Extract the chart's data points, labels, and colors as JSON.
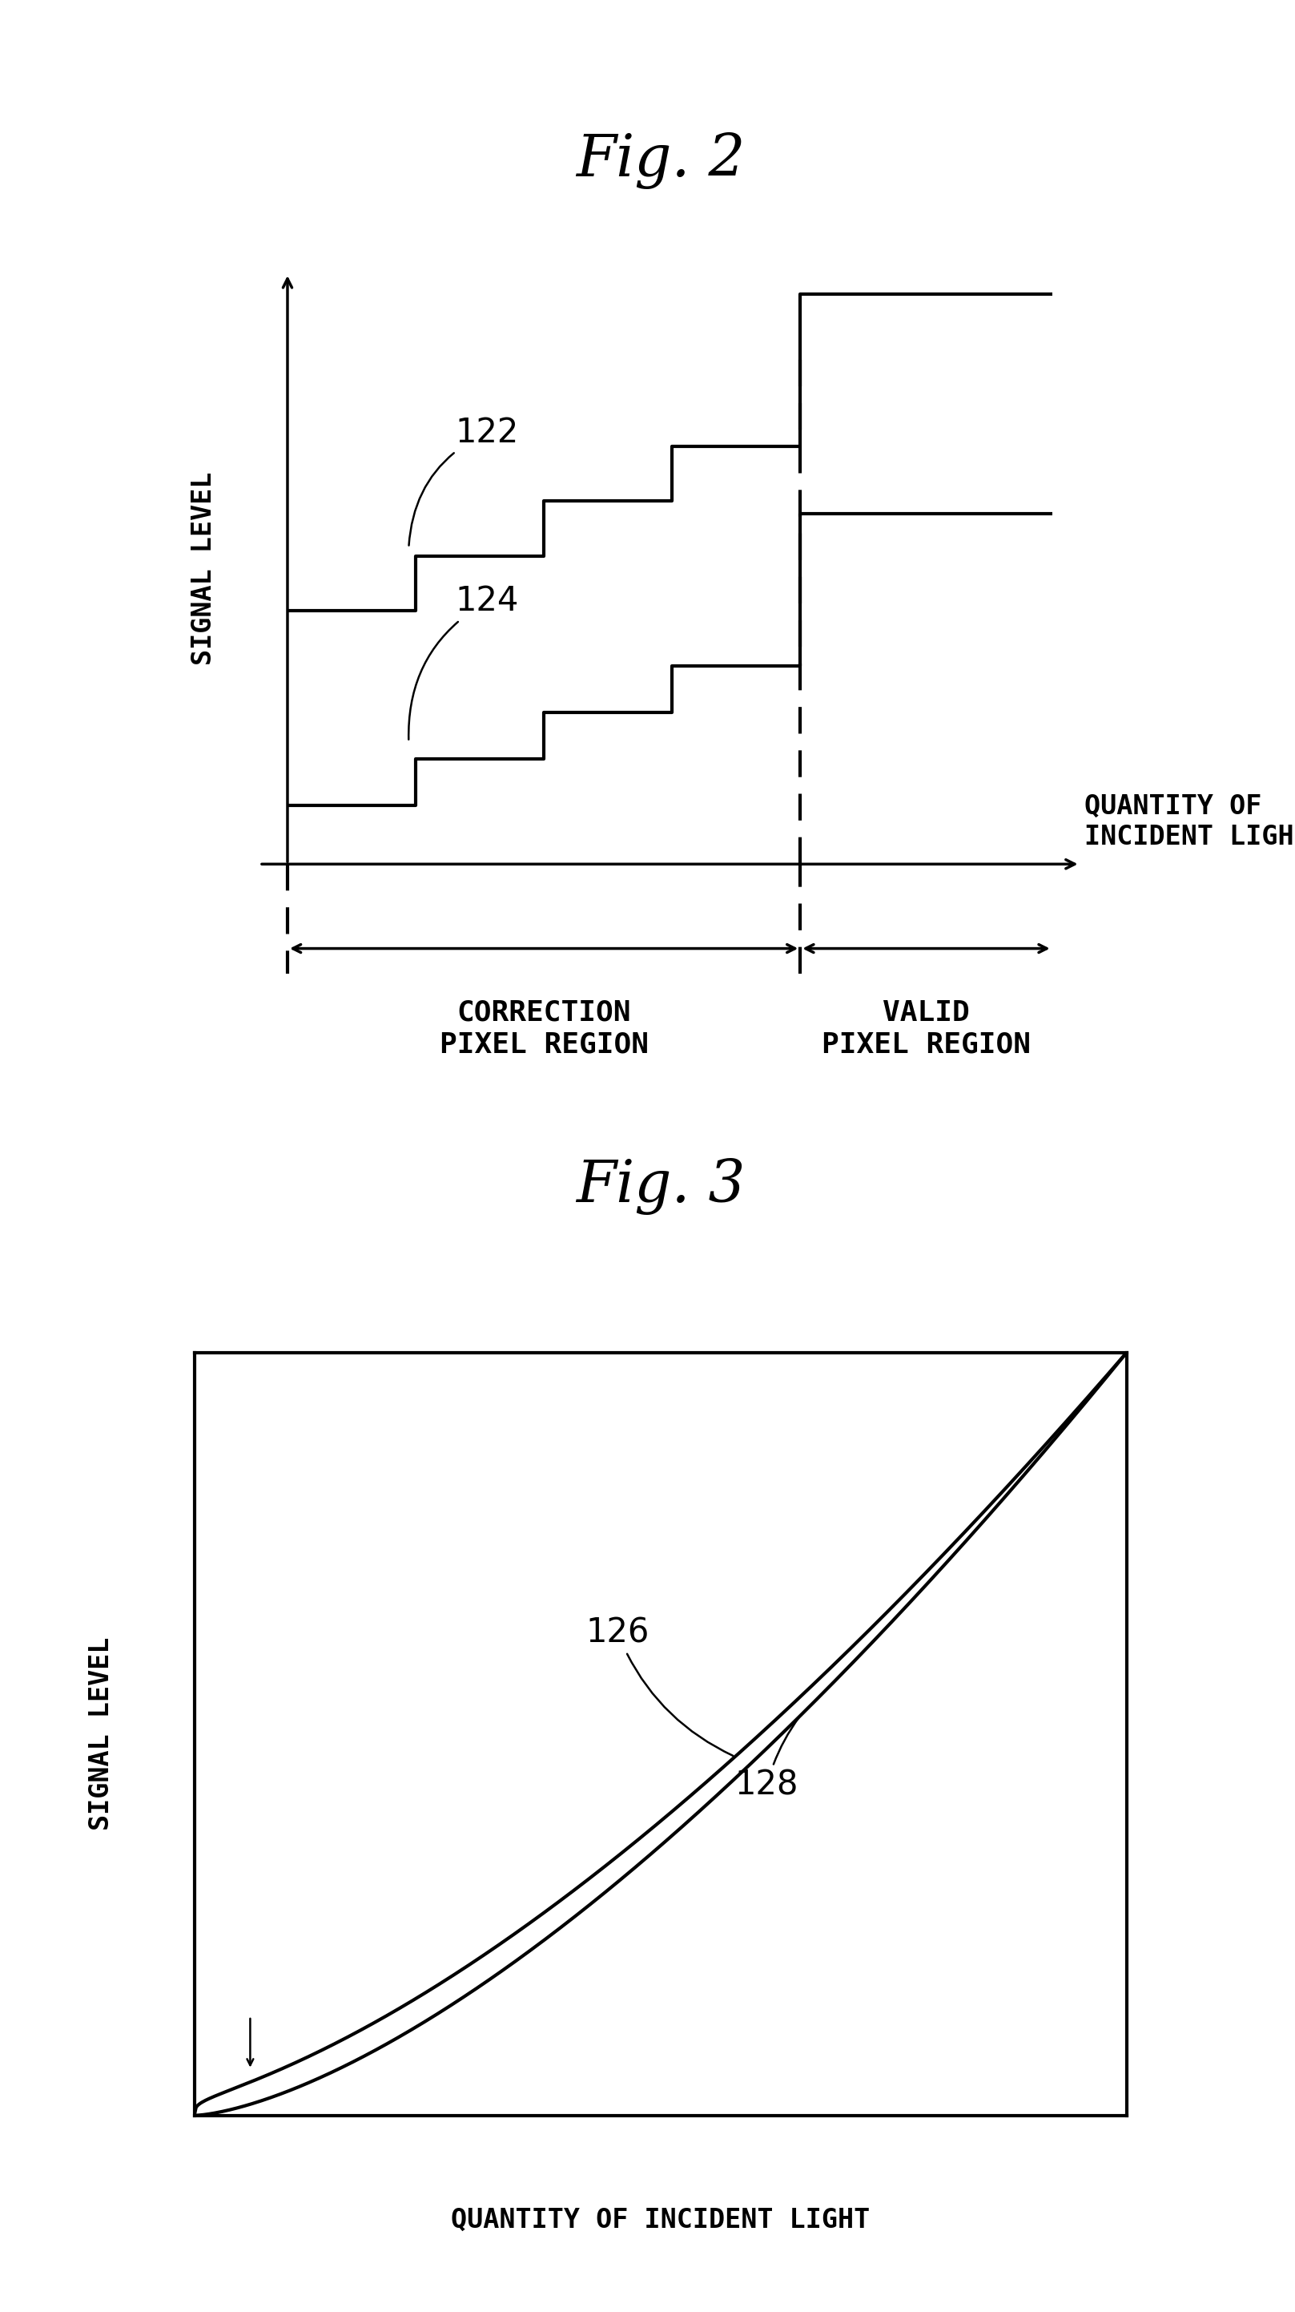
{
  "fig2_title": "Fig. 2",
  "fig3_title": "Fig. 3",
  "bg_color": "#ffffff",
  "line_color": "#000000",
  "label122": "122",
  "label124": "124",
  "label126": "126",
  "label128": "128",
  "xlabel_fig2": "QUANTITY OF\nINCIDENT LIGHT",
  "ylabel_fig2": "SIGNAL LEVEL",
  "correction_label": "CORRECTION\nPIXEL REGION",
  "valid_label": "VALID\nPIXEL REGION",
  "xlabel_fig3": "QUANTITY OF INCIDENT LIGHT",
  "ylabel_fig3": "SIGNAL LEVEL",
  "fontsize_title": 52,
  "fontsize_axis_label": 24,
  "fontsize_region_label": 26,
  "fontsize_annot": 30,
  "lw_main": 3.0,
  "lw_arrow": 2.5
}
